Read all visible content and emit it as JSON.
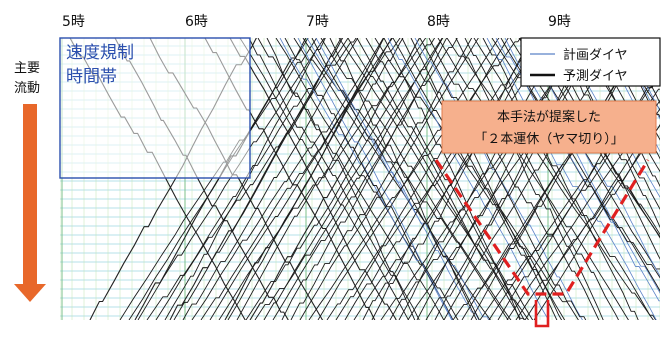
{
  "hour_labels": [
    "5時",
    "6時",
    "7時",
    "8時",
    "9時"
  ],
  "flow_label": {
    "line1": "主要",
    "line2": "流動"
  },
  "speed_box": {
    "line1": "速度規制",
    "line2": "時間帯"
  },
  "legend": {
    "planned": "計画ダイヤ",
    "predicted": "予測ダイヤ",
    "planned_color": "#5b82c7",
    "predicted_color": "#111111"
  },
  "callout": {
    "line1": "本手法が提案した",
    "line2": "「２本運休（ヤマ切り）」",
    "fill_color": "#f6b08d"
  },
  "colors": {
    "grid_horizontal": "#9ed6e3",
    "grid_vertical": "#bfe6b0",
    "arrow": "#e8682a",
    "dashed_v": "#e02020",
    "box_border": "#2b4fae"
  }
}
